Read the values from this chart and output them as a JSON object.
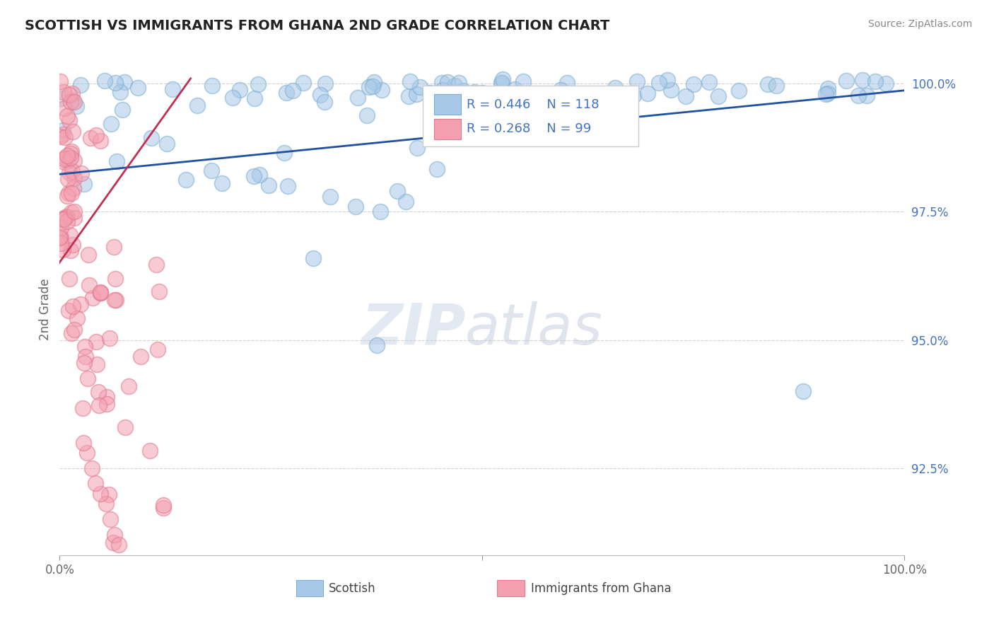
{
  "title": "SCOTTISH VS IMMIGRANTS FROM GHANA 2ND GRADE CORRELATION CHART",
  "source": "Source: ZipAtlas.com",
  "ylabel": "2nd Grade",
  "ylabel_ticks": [
    "92.5%",
    "95.0%",
    "97.5%",
    "100.0%"
  ],
  "ylabel_tick_vals": [
    0.925,
    0.95,
    0.975,
    1.0
  ],
  "xrange": [
    0.0,
    1.0
  ],
  "yrange": [
    0.908,
    1.004
  ],
  "legend_blue_r": "R = 0.446",
  "legend_blue_n": "N = 118",
  "legend_pink_r": "R = 0.268",
  "legend_pink_n": "N = 99",
  "legend_label_blue": "Scottish",
  "legend_label_pink": "Immigrants from Ghana",
  "blue_color": "#a8c8e8",
  "pink_color": "#f4a0b0",
  "blue_edge_color": "#7aaed0",
  "pink_edge_color": "#e07890",
  "blue_line_color": "#2050a0",
  "pink_line_color": "#c03050",
  "background_color": "#ffffff",
  "grid_color": "#cccccc",
  "tick_color_y": "#4472c4",
  "tick_color_x": "#666666",
  "title_color": "#222222",
  "source_color": "#888888",
  "legend_text_color": "#4472c4"
}
